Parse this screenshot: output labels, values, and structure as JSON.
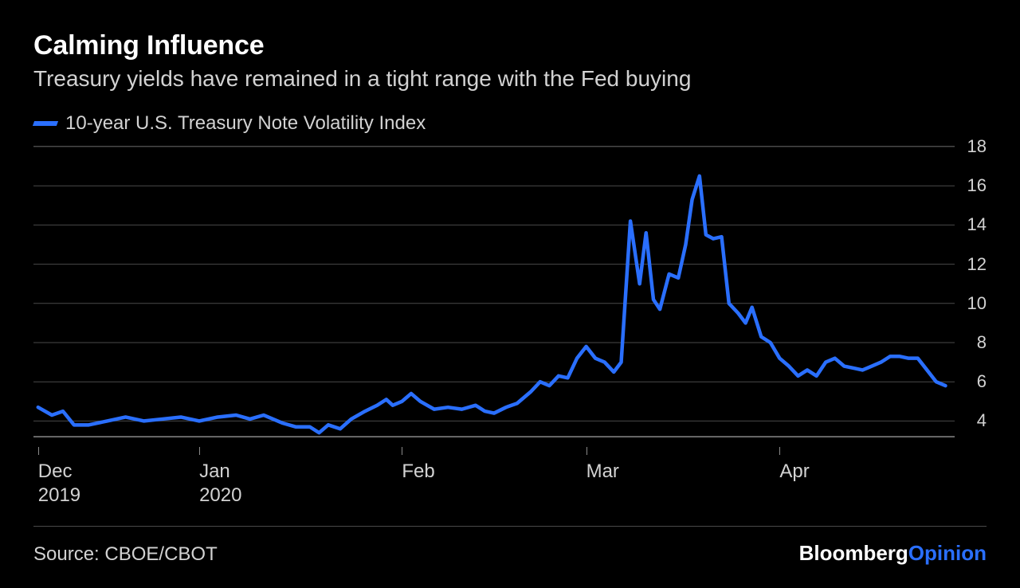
{
  "title": "Calming Influence",
  "subtitle": "Treasury yields have remained in a tight range with the Fed buying",
  "legend": {
    "label": "10-year U.S. Treasury Note Volatility Index",
    "color": "#2a6fff"
  },
  "chart": {
    "type": "line",
    "background_color": "#000000",
    "grid_color": "#4a4a4a",
    "baseline_color": "#8a8a8a",
    "series_color": "#2a6fff",
    "line_width": 4.5,
    "y": {
      "min": 3,
      "max": 18,
      "ticks": [
        4,
        6,
        8,
        10,
        12,
        14,
        16,
        18
      ],
      "label_fontsize": 22,
      "label_color": "#d2d2d2"
    },
    "x": {
      "min": 0,
      "max": 100,
      "ticks": [
        {
          "pos": 0.5,
          "label1": "Dec",
          "label2": "2019"
        },
        {
          "pos": 18.0,
          "label1": "Jan",
          "label2": "2020"
        },
        {
          "pos": 40.0,
          "label1": "Feb",
          "label2": ""
        },
        {
          "pos": 60.0,
          "label1": "Mar",
          "label2": ""
        },
        {
          "pos": 81.0,
          "label1": "Apr",
          "label2": ""
        }
      ],
      "label_fontsize": 24,
      "label_color": "#d2d2d2"
    },
    "series": [
      {
        "x": 0.5,
        "y": 4.7
      },
      {
        "x": 2.0,
        "y": 4.3
      },
      {
        "x": 3.2,
        "y": 4.5
      },
      {
        "x": 4.4,
        "y": 3.8
      },
      {
        "x": 6.0,
        "y": 3.8
      },
      {
        "x": 8.0,
        "y": 4.0
      },
      {
        "x": 10.0,
        "y": 4.2
      },
      {
        "x": 12.0,
        "y": 4.0
      },
      {
        "x": 14.0,
        "y": 4.1
      },
      {
        "x": 16.0,
        "y": 4.2
      },
      {
        "x": 18.0,
        "y": 4.0
      },
      {
        "x": 20.0,
        "y": 4.2
      },
      {
        "x": 22.0,
        "y": 4.3
      },
      {
        "x": 23.5,
        "y": 4.1
      },
      {
        "x": 25.0,
        "y": 4.3
      },
      {
        "x": 27.0,
        "y": 3.9
      },
      {
        "x": 28.5,
        "y": 3.7
      },
      {
        "x": 30.0,
        "y": 3.7
      },
      {
        "x": 31.0,
        "y": 3.4
      },
      {
        "x": 32.0,
        "y": 3.8
      },
      {
        "x": 33.3,
        "y": 3.6
      },
      {
        "x": 34.5,
        "y": 4.1
      },
      {
        "x": 36.0,
        "y": 4.5
      },
      {
        "x": 37.3,
        "y": 4.8
      },
      {
        "x": 38.3,
        "y": 5.1
      },
      {
        "x": 39.0,
        "y": 4.8
      },
      {
        "x": 40.0,
        "y": 5.0
      },
      {
        "x": 41.0,
        "y": 5.4
      },
      {
        "x": 42.0,
        "y": 5.0
      },
      {
        "x": 43.5,
        "y": 4.6
      },
      {
        "x": 45.0,
        "y": 4.7
      },
      {
        "x": 46.5,
        "y": 4.6
      },
      {
        "x": 48.0,
        "y": 4.8
      },
      {
        "x": 49.0,
        "y": 4.5
      },
      {
        "x": 50.0,
        "y": 4.4
      },
      {
        "x": 51.3,
        "y": 4.7
      },
      {
        "x": 52.5,
        "y": 4.9
      },
      {
        "x": 54.0,
        "y": 5.5
      },
      {
        "x": 55.0,
        "y": 6.0
      },
      {
        "x": 56.0,
        "y": 5.8
      },
      {
        "x": 57.0,
        "y": 6.3
      },
      {
        "x": 58.0,
        "y": 6.2
      },
      {
        "x": 59.0,
        "y": 7.2
      },
      {
        "x": 60.0,
        "y": 7.8
      },
      {
        "x": 61.0,
        "y": 7.2
      },
      {
        "x": 62.0,
        "y": 7.0
      },
      {
        "x": 63.0,
        "y": 6.5
      },
      {
        "x": 63.8,
        "y": 7.0
      },
      {
        "x": 64.8,
        "y": 14.2
      },
      {
        "x": 65.8,
        "y": 11.0
      },
      {
        "x": 66.5,
        "y": 13.6
      },
      {
        "x": 67.3,
        "y": 10.2
      },
      {
        "x": 68.0,
        "y": 9.7
      },
      {
        "x": 69.0,
        "y": 11.5
      },
      {
        "x": 70.0,
        "y": 11.3
      },
      {
        "x": 70.8,
        "y": 13.0
      },
      {
        "x": 71.5,
        "y": 15.3
      },
      {
        "x": 72.3,
        "y": 16.5
      },
      {
        "x": 73.0,
        "y": 13.5
      },
      {
        "x": 73.8,
        "y": 13.3
      },
      {
        "x": 74.7,
        "y": 13.4
      },
      {
        "x": 75.5,
        "y": 10.0
      },
      {
        "x": 76.5,
        "y": 9.5
      },
      {
        "x": 77.3,
        "y": 9.0
      },
      {
        "x": 78.0,
        "y": 9.8
      },
      {
        "x": 79.0,
        "y": 8.3
      },
      {
        "x": 80.0,
        "y": 8.0
      },
      {
        "x": 81.0,
        "y": 7.2
      },
      {
        "x": 82.0,
        "y": 6.8
      },
      {
        "x": 83.0,
        "y": 6.3
      },
      {
        "x": 84.0,
        "y": 6.6
      },
      {
        "x": 85.0,
        "y": 6.3
      },
      {
        "x": 86.0,
        "y": 7.0
      },
      {
        "x": 87.0,
        "y": 7.2
      },
      {
        "x": 88.0,
        "y": 6.8
      },
      {
        "x": 89.0,
        "y": 6.7
      },
      {
        "x": 90.0,
        "y": 6.6
      },
      {
        "x": 91.0,
        "y": 6.8
      },
      {
        "x": 92.0,
        "y": 7.0
      },
      {
        "x": 93.0,
        "y": 7.3
      },
      {
        "x": 94.0,
        "y": 7.3
      },
      {
        "x": 95.0,
        "y": 7.2
      },
      {
        "x": 96.0,
        "y": 7.2
      },
      {
        "x": 97.0,
        "y": 6.6
      },
      {
        "x": 98.0,
        "y": 6.0
      },
      {
        "x": 99.0,
        "y": 5.8
      }
    ]
  },
  "source": "Source: CBOE/CBOT",
  "brand": {
    "a": "Bloomberg",
    "b": "Opinion",
    "color_a": "#ffffff",
    "color_b": "#2a6fff"
  }
}
